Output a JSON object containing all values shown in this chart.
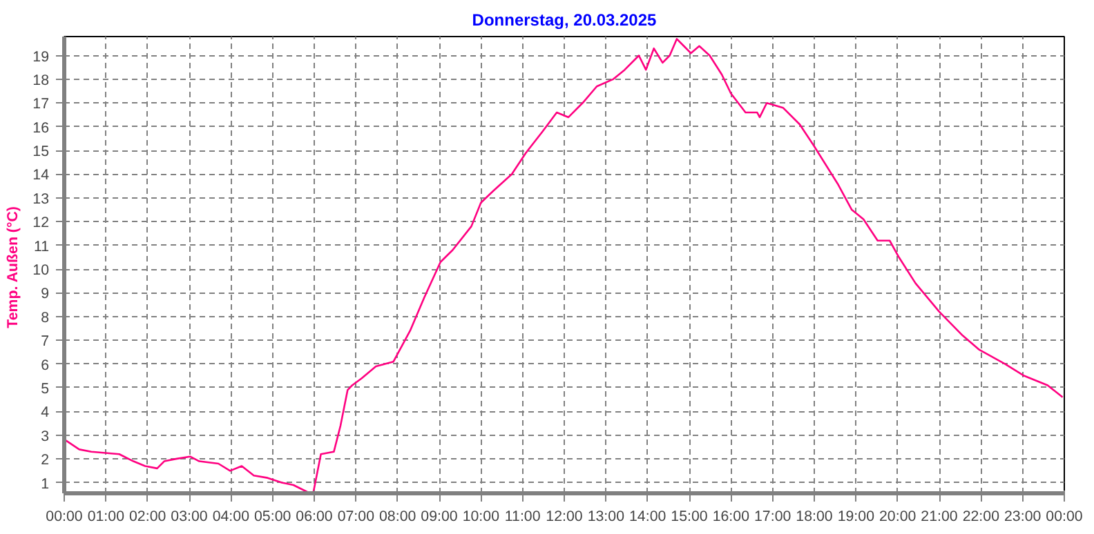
{
  "chart_data": {
    "type": "line",
    "title": "Donnerstag, 20.03.2025",
    "ylabel": "Temp. Außen  (°C)",
    "x": [
      0.02,
      0.36,
      0.65,
      1.32,
      1.66,
      1.94,
      2.23,
      2.4,
      2.68,
      3.02,
      3.24,
      3.7,
      3.98,
      4.26,
      4.55,
      4.88,
      5.22,
      5.5,
      5.84,
      5.98,
      6.16,
      6.47,
      6.63,
      6.8,
      6.91,
      7.14,
      7.48,
      7.9,
      8.3,
      8.64,
      9.03,
      9.32,
      9.77,
      10.0,
      10.3,
      10.74,
      11.08,
      11.48,
      11.82,
      12.1,
      12.44,
      12.78,
      13.17,
      13.45,
      13.79,
      13.96,
      14.15,
      14.36,
      14.53,
      14.7,
      14.87,
      15.04,
      15.24,
      15.49,
      15.78,
      16.0,
      16.35,
      16.63,
      16.69,
      16.86,
      17.25,
      17.65,
      17.99,
      18.56,
      18.9,
      19.18,
      19.52,
      19.81,
      20.03,
      20.43,
      21.0,
      21.56,
      21.96,
      22.58,
      23.04,
      23.6,
      23.96
    ],
    "series": [
      {
        "color": "#ff0080",
        "values": [
          2.8,
          2.4,
          2.3,
          2.2,
          1.9,
          1.7,
          1.6,
          1.9,
          2.0,
          2.1,
          1.9,
          1.8,
          1.5,
          1.7,
          1.3,
          1.2,
          1.0,
          0.9,
          0.6,
          0.6,
          2.2,
          2.3,
          3.4,
          4.9,
          5.1,
          5.4,
          5.9,
          6.1,
          7.4,
          8.8,
          10.3,
          10.8,
          11.8,
          12.8,
          13.3,
          14.0,
          14.9,
          15.8,
          16.6,
          16.4,
          17.0,
          17.7,
          18.0,
          18.4,
          19.0,
          18.4,
          19.3,
          18.7,
          19.0,
          19.7,
          19.4,
          19.1,
          19.4,
          19.0,
          18.2,
          17.4,
          16.6,
          16.6,
          16.4,
          17.0,
          16.8,
          16.1,
          15.2,
          13.6,
          12.5,
          12.1,
          11.2,
          11.2,
          10.5,
          9.4,
          8.2,
          7.2,
          6.6,
          6.0,
          5.5,
          5.1,
          4.6
        ]
      }
    ],
    "xlim": [
      0,
      24
    ],
    "ylim": [
      0.55,
      19.8
    ],
    "xticks": [
      {
        "value": 0,
        "label": "00:00"
      },
      {
        "value": 1,
        "label": "01:00"
      },
      {
        "value": 2,
        "label": "02:00"
      },
      {
        "value": 3,
        "label": "03:00"
      },
      {
        "value": 4,
        "label": "04:00"
      },
      {
        "value": 5,
        "label": "05:00"
      },
      {
        "value": 6,
        "label": "06:00"
      },
      {
        "value": 7,
        "label": "07:00"
      },
      {
        "value": 8,
        "label": "08:00"
      },
      {
        "value": 9,
        "label": "09:00"
      },
      {
        "value": 10,
        "label": "10:00"
      },
      {
        "value": 11,
        "label": "11:00"
      },
      {
        "value": 12,
        "label": "12:00"
      },
      {
        "value": 13,
        "label": "13:00"
      },
      {
        "value": 14,
        "label": "14:00"
      },
      {
        "value": 15,
        "label": "15:00"
      },
      {
        "value": 16,
        "label": "16:00"
      },
      {
        "value": 17,
        "label": "17:00"
      },
      {
        "value": 18,
        "label": "18:00"
      },
      {
        "value": 19,
        "label": "19:00"
      },
      {
        "value": 20,
        "label": "20:00"
      },
      {
        "value": 21,
        "label": "21:00"
      },
      {
        "value": 22,
        "label": "22:00"
      },
      {
        "value": 23,
        "label": "23:00"
      },
      {
        "value": 24,
        "label": "00:00"
      }
    ],
    "yticks": [
      1,
      2,
      3,
      4,
      5,
      6,
      7,
      8,
      9,
      10,
      11,
      12,
      13,
      14,
      15,
      16,
      17,
      18,
      19
    ],
    "grid": true,
    "line_style": "solid",
    "marker": "none"
  }
}
